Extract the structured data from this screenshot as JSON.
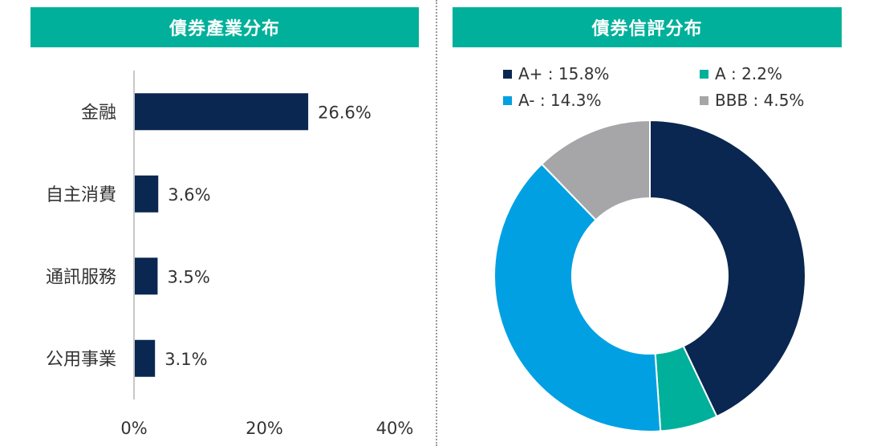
{
  "left_panel": {
    "title": "債券產業分布"
  },
  "right_panel": {
    "title": "債券信評分布"
  },
  "chart_data": [
    {
      "type": "bar",
      "orientation": "horizontal",
      "title": "債券產業分布",
      "categories": [
        "金融",
        "自主消費",
        "通訊服務",
        "公用事業"
      ],
      "values": [
        26.6,
        3.6,
        3.5,
        3.1
      ],
      "value_labels": [
        "26.6%",
        "3.6%",
        "3.5%",
        "3.1%"
      ],
      "xlim": [
        0,
        40
      ],
      "xticks": [
        "0%",
        "20%",
        "40%"
      ],
      "color": "#0A2751"
    },
    {
      "type": "pie",
      "style": "donut",
      "title": "債券信評分布",
      "legend_position": "top",
      "slices": [
        {
          "label": "A+",
          "value": 15.8,
          "legend_text": "A+ : 15.8%",
          "color": "#0A2751"
        },
        {
          "label": "A",
          "value": 2.2,
          "legend_text": "A : 2.2%",
          "color": "#00B09A"
        },
        {
          "label": "A-",
          "value": 14.3,
          "legend_text": "A- : 14.3%",
          "color": "#00A0E3"
        },
        {
          "label": "BBB",
          "value": 4.5,
          "legend_text": "BBB : 4.5%",
          "color": "#A6A6A8"
        }
      ]
    }
  ]
}
